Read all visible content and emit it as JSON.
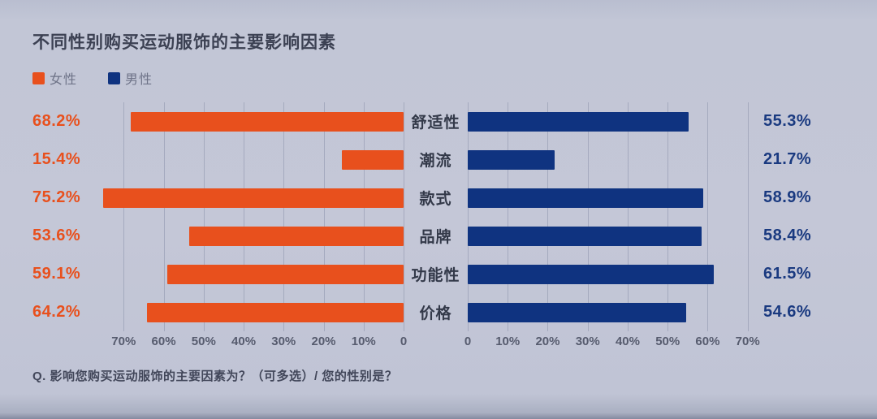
{
  "chart_data": {
    "type": "bar",
    "variant": "diverging-horizontal",
    "title": "不同性别购买运动服饰的主要影响因素",
    "note": "Q. 影响您购买运动服饰的主要因素为？（可多选）/ 您的性别是？",
    "categories": [
      "舒适性",
      "潮流",
      "款式",
      "品牌",
      "功能性",
      "价格"
    ],
    "series": [
      {
        "name": "女性",
        "side": "left",
        "color": "#e8501d",
        "values": [
          68.2,
          15.4,
          75.2,
          53.6,
          59.1,
          64.2
        ]
      },
      {
        "name": "男性",
        "side": "right",
        "color": "#0f3380",
        "values": [
          55.3,
          21.7,
          58.9,
          58.4,
          61.5,
          54.6
        ]
      }
    ],
    "value_label_format": "percent-1dp",
    "xlim": [
      0,
      72.5
    ],
    "grid": true,
    "legend_position": "top-left",
    "axes": {
      "left_tick_values": [
        70,
        60,
        50,
        40,
        30,
        20,
        10,
        0
      ],
      "left_tick_labels": [
        "70%",
        "60%",
        "50%",
        "40%",
        "30%",
        "20%",
        "10%",
        "0"
      ],
      "right_tick_values": [
        0,
        10,
        20,
        30,
        40,
        50,
        60,
        70
      ],
      "right_tick_labels": [
        "0",
        "10%",
        "20%",
        "30%",
        "40%",
        "50%",
        "60%",
        "70%"
      ]
    }
  },
  "colors": {
    "background": "#c3c6d6",
    "title_text": "#3c4153",
    "legend_text": "#6e7388",
    "category_text": "#333949",
    "axis_text": "#565b6e",
    "note_text": "#42475a",
    "gridline": "rgba(110,118,145,0.35)"
  }
}
